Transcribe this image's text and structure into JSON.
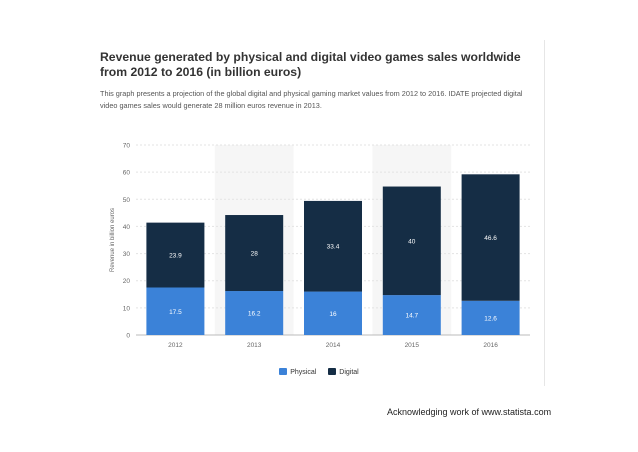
{
  "chart_data": {
    "type": "bar",
    "stacked": true,
    "title": "Revenue generated by physical and digital video games sales worldwide from 2012 to 2016 (in billion euros)",
    "subtitle": "This graph presents a projection of the global digital and physical gaming market values from 2012 to 2016. IDATE projected digital video games sales would generate 28 million euros revenue in 2013.",
    "xlabel": "",
    "ylabel": "Revenue in billion euros",
    "categories": [
      "2012",
      "2013",
      "2014",
      "2015",
      "2016"
    ],
    "series": [
      {
        "name": "Physical",
        "values": [
          17.5,
          16.2,
          16,
          14.7,
          12.6
        ],
        "labels": [
          "17.5",
          "16.2",
          "16",
          "14.7",
          "12.6"
        ],
        "color": "#3b82d8"
      },
      {
        "name": "Digital",
        "values": [
          23.9,
          28,
          33.4,
          40,
          46.6
        ],
        "labels": [
          "23.9",
          "28",
          "33.4",
          "40",
          "46.6"
        ],
        "color": "#152d45"
      }
    ],
    "ylim": [
      0,
      70
    ],
    "yticks": [
      "0",
      "10",
      "20",
      "30",
      "40",
      "50",
      "60",
      "70"
    ],
    "grid": true,
    "legend": "bottom-center"
  },
  "credit": "Acknowledging work of www.statista.com"
}
